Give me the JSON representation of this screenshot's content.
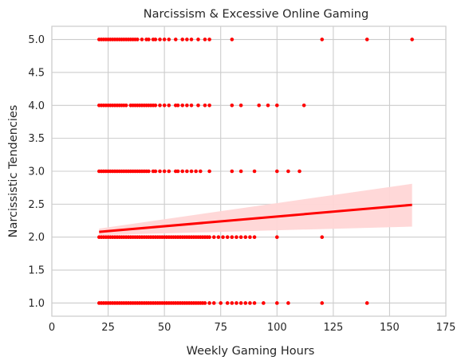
{
  "chart_data": {
    "type": "scatter",
    "title": "Narcissism & Excessive Online Gaming",
    "xlabel": "Weekly Gaming Hours",
    "ylabel": "Narcissistic Tendencies",
    "xlim": [
      0,
      175
    ],
    "ylim": [
      0.8,
      5.2
    ],
    "xticks": [
      0,
      25,
      50,
      75,
      100,
      125,
      150,
      175
    ],
    "yticks": [
      1.0,
      1.5,
      2.0,
      2.5,
      3.0,
      3.5,
      4.0,
      4.5,
      5.0
    ],
    "xtick_labels": [
      "0",
      "25",
      "50",
      "75",
      "100",
      "125",
      "150",
      "175"
    ],
    "ytick_labels": [
      "1.0",
      "1.5",
      "2.0",
      "2.5",
      "3.0",
      "3.5",
      "4.0",
      "4.5",
      "5.0"
    ],
    "grid": true,
    "point_color": "#ff0000",
    "line_color": "#ff0000",
    "band_color": "#ffd6d6",
    "series": [
      {
        "y": 5,
        "x": [
          21,
          22,
          23,
          24,
          25,
          26,
          27,
          28,
          29,
          30,
          31,
          32,
          33,
          34,
          35,
          36,
          37,
          38,
          40,
          42,
          43,
          45,
          46,
          48,
          50,
          52,
          55,
          58,
          60,
          62,
          65,
          68,
          70,
          80,
          120,
          140,
          160
        ]
      },
      {
        "y": 4,
        "x": [
          21,
          22,
          23,
          24,
          25,
          26,
          27,
          28,
          29,
          30,
          31,
          32,
          33,
          35,
          36,
          37,
          38,
          39,
          40,
          41,
          42,
          43,
          44,
          45,
          46,
          48,
          50,
          52,
          55,
          56,
          58,
          60,
          62,
          65,
          68,
          70,
          80,
          84,
          92,
          96,
          100,
          112
        ]
      },
      {
        "y": 3,
        "x": [
          21,
          22,
          23,
          24,
          25,
          26,
          27,
          28,
          29,
          30,
          31,
          32,
          33,
          34,
          35,
          36,
          37,
          38,
          39,
          40,
          41,
          42,
          43,
          45,
          46,
          48,
          50,
          52,
          55,
          56,
          58,
          60,
          62,
          64,
          66,
          70,
          80,
          84,
          90,
          100,
          105,
          110
        ]
      },
      {
        "y": 2,
        "x": [
          21,
          22,
          23,
          24,
          25,
          26,
          27,
          28,
          29,
          30,
          31,
          32,
          33,
          34,
          35,
          36,
          37,
          38,
          39,
          40,
          41,
          42,
          43,
          44,
          45,
          46,
          47,
          48,
          49,
          50,
          51,
          52,
          53,
          54,
          55,
          56,
          57,
          58,
          59,
          60,
          61,
          62,
          63,
          64,
          65,
          66,
          67,
          68,
          69,
          70,
          72,
          74,
          76,
          78,
          80,
          82,
          84,
          86,
          88,
          90,
          100,
          120
        ]
      },
      {
        "y": 1,
        "x": [
          21,
          22,
          23,
          24,
          25,
          26,
          27,
          28,
          29,
          30,
          31,
          32,
          33,
          34,
          35,
          36,
          37,
          38,
          39,
          40,
          41,
          42,
          43,
          44,
          45,
          46,
          47,
          48,
          49,
          50,
          51,
          52,
          53,
          54,
          55,
          56,
          57,
          58,
          59,
          60,
          61,
          62,
          63,
          64,
          65,
          66,
          67,
          68,
          70,
          72,
          75,
          78,
          80,
          82,
          84,
          86,
          88,
          90,
          94,
          100,
          105,
          120,
          140
        ]
      }
    ],
    "regression": {
      "x": [
        21,
        160
      ],
      "y": [
        2.08,
        2.49
      ],
      "ci_lower": [
        2.03,
        2.16
      ],
      "ci_upper": [
        2.13,
        2.81
      ]
    }
  }
}
